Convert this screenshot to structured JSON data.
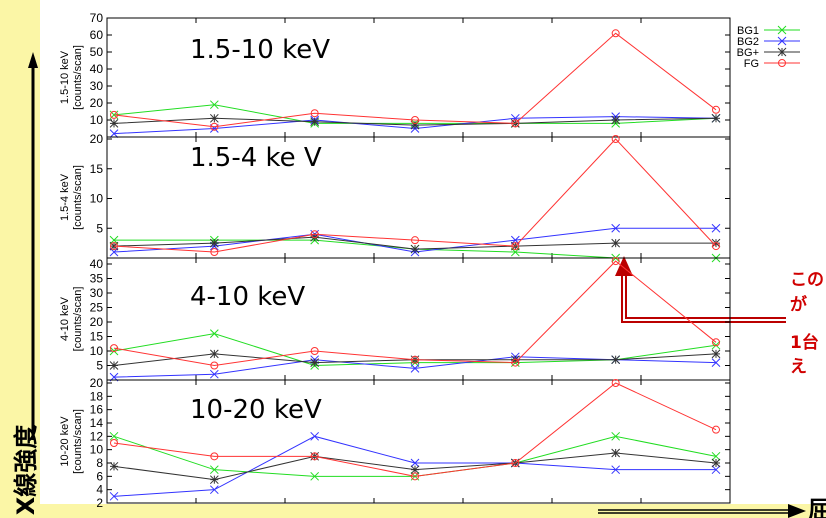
{
  "y_axis_big_label": "X線強度",
  "x_axis_big_label": "屈",
  "annotation_lines": [
    "この",
    "が",
    "1台",
    "え"
  ],
  "legend": [
    {
      "label": "BG1",
      "color": "#22dd22",
      "marker": "x"
    },
    {
      "label": "BG2",
      "color": "#3333ff",
      "marker": "x"
    },
    {
      "label": "BG+",
      "color": "#333333",
      "marker": "star"
    },
    {
      "label": "FG",
      "color": "#ff3333",
      "marker": "circle"
    }
  ],
  "chart_data": [
    {
      "type": "line",
      "title": "1.5-10 keV",
      "ylabel": [
        "1.5-10 keV",
        "[counts/scan]"
      ],
      "ylim": [
        0,
        70
      ],
      "yticks": [
        10,
        20,
        30,
        40,
        50,
        60,
        70
      ],
      "x": [
        0,
        1,
        2,
        3,
        4,
        5,
        6
      ],
      "series": [
        {
          "name": "BG1",
          "values": [
            13,
            19,
            8,
            8,
            8,
            8,
            11
          ]
        },
        {
          "name": "BG2",
          "values": [
            2,
            5,
            10,
            5,
            11,
            12,
            11
          ]
        },
        {
          "name": "BG+",
          "values": [
            8,
            11,
            9,
            7,
            8,
            10,
            11
          ]
        },
        {
          "name": "FG",
          "values": [
            13,
            6,
            14,
            10,
            8,
            61,
            16
          ]
        }
      ]
    },
    {
      "type": "line",
      "title": "1.5-4 ke V",
      "ylabel": [
        "1.5-4 keV",
        "[counts/scan]"
      ],
      "ylim": [
        0,
        20
      ],
      "yticks": [
        5,
        10,
        15,
        20
      ],
      "x": [
        0,
        1,
        2,
        3,
        4,
        5,
        6
      ],
      "series": [
        {
          "name": "BG1",
          "values": [
            3,
            3,
            3,
            1.5,
            1,
            0,
            0
          ]
        },
        {
          "name": "BG2",
          "values": [
            1,
            2,
            4,
            1,
            3,
            5,
            5
          ]
        },
        {
          "name": "BG+",
          "values": [
            2,
            2.5,
            3.5,
            1.5,
            2,
            2.5,
            2.5
          ]
        },
        {
          "name": "FG",
          "values": [
            2,
            1,
            4,
            3,
            2,
            20,
            2
          ]
        }
      ]
    },
    {
      "type": "line",
      "title": "4-10 keV",
      "ylabel": [
        "4-10 keV",
        "[counts/scan]"
      ],
      "ylim": [
        0,
        40
      ],
      "yticks": [
        5,
        10,
        15,
        20,
        25,
        30,
        35,
        40
      ],
      "x": [
        0,
        1,
        2,
        3,
        4,
        5,
        6
      ],
      "series": [
        {
          "name": "BG1",
          "values": [
            10,
            16,
            5,
            6,
            6,
            7,
            12
          ]
        },
        {
          "name": "BG2",
          "values": [
            1,
            2,
            7,
            4,
            8,
            7,
            6
          ]
        },
        {
          "name": "BG+",
          "values": [
            5,
            9,
            6,
            7,
            7,
            7,
            9
          ]
        },
        {
          "name": "FG",
          "values": [
            11,
            5,
            10,
            7,
            6,
            41,
            13
          ]
        }
      ]
    },
    {
      "type": "line",
      "title": "10-20 keV",
      "ylabel": [
        "10-20 keV",
        "[counts/scan]"
      ],
      "ylim": [
        2,
        20
      ],
      "yticks": [
        2,
        4,
        6,
        8,
        10,
        12,
        14,
        16,
        18,
        20
      ],
      "x": [
        0,
        1,
        2,
        3,
        4,
        5,
        6
      ],
      "series": [
        {
          "name": "BG1",
          "values": [
            12,
            7,
            6,
            6,
            8,
            12,
            9
          ]
        },
        {
          "name": "BG2",
          "values": [
            3,
            4,
            12,
            8,
            8,
            7,
            7
          ]
        },
        {
          "name": "BG+",
          "values": [
            7.5,
            5.5,
            9,
            7,
            8,
            9.5,
            8
          ]
        },
        {
          "name": "FG",
          "values": [
            11,
            9,
            9,
            6,
            8,
            20,
            13
          ]
        }
      ]
    }
  ]
}
